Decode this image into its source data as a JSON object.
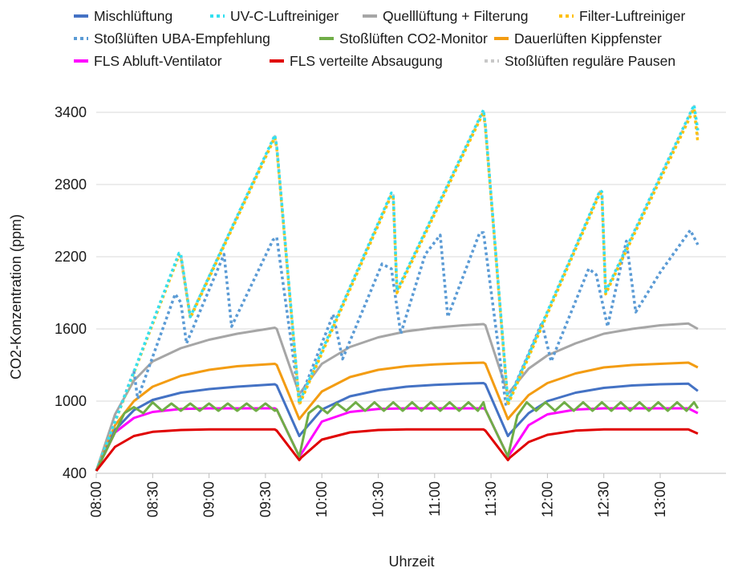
{
  "chart_data": {
    "type": "line",
    "xlabel": "Uhrzeit",
    "ylabel": "CO2-Konzentration (ppm)",
    "ylim": [
      400,
      3400
    ],
    "yticks": [
      400,
      1000,
      1600,
      2200,
      2800,
      3400
    ],
    "xlim_minutes_from_0800": [
      0,
      335
    ],
    "xticks": [
      "08:00",
      "08:30",
      "09:00",
      "09:30",
      "10:00",
      "10:30",
      "11:00",
      "11:30",
      "12:00",
      "12:30",
      "13:00"
    ],
    "grid": "horizontal",
    "legend_position": "top",
    "series": [
      {
        "name": "Mischlüftung",
        "color": "#4472C4",
        "dash": "solid",
        "x": [
          "08:00",
          "08:10",
          "08:20",
          "08:30",
          "08:45",
          "09:00",
          "09:15",
          "09:35",
          "09:36",
          "09:48",
          "09:49",
          "10:00",
          "10:15",
          "10:30",
          "10:45",
          "11:00",
          "11:15",
          "11:26",
          "11:27",
          "11:39",
          "11:40",
          "11:50",
          "12:00",
          "12:15",
          "12:30",
          "12:45",
          "13:00",
          "13:15",
          "13:20"
        ],
        "values": [
          420,
          760,
          925,
          1010,
          1070,
          1100,
          1120,
          1140,
          1130,
          710,
          730,
          930,
          1040,
          1090,
          1120,
          1135,
          1145,
          1150,
          1140,
          710,
          730,
          900,
          1000,
          1070,
          1110,
          1130,
          1140,
          1145,
          1085
        ]
      },
      {
        "name": "UV-C-Luftreiniger",
        "color": "#33E0F0",
        "dash": "dot",
        "x": [
          "08:00",
          "08:44",
          "08:45",
          "08:50",
          "09:35",
          "09:36",
          "09:48",
          "10:37",
          "10:38",
          "10:40",
          "11:26",
          "11:27",
          "11:39",
          "12:28",
          "12:29",
          "12:31",
          "13:18",
          "13:20"
        ],
        "values": [
          420,
          2230,
          2220,
          1700,
          3210,
          3120,
          990,
          2730,
          2720,
          1920,
          3420,
          3290,
          990,
          2750,
          2740,
          1910,
          3460,
          3250
        ]
      },
      {
        "name": "Quelllüftung + Filterung",
        "color": "#A6A6A6",
        "dash": "solid",
        "x": [
          "08:00",
          "08:10",
          "08:20",
          "08:30",
          "08:45",
          "09:00",
          "09:15",
          "09:35",
          "09:36",
          "09:48",
          "09:49",
          "10:00",
          "10:15",
          "10:30",
          "10:45",
          "11:00",
          "11:15",
          "11:26",
          "11:27",
          "11:39",
          "11:40",
          "11:50",
          "12:00",
          "12:15",
          "12:30",
          "12:45",
          "13:00",
          "13:15",
          "13:20"
        ],
        "values": [
          420,
          890,
          1170,
          1330,
          1440,
          1510,
          1560,
          1610,
          1600,
          1060,
          1080,
          1310,
          1450,
          1530,
          1580,
          1610,
          1630,
          1640,
          1630,
          1060,
          1080,
          1270,
          1380,
          1480,
          1560,
          1600,
          1630,
          1645,
          1600
        ]
      },
      {
        "name": "Filter-Luftreiniger",
        "color": "#FFC000",
        "dash": "dot",
        "x": [
          "08:00",
          "08:44",
          "08:45",
          "08:50",
          "09:35",
          "09:36",
          "09:48",
          "10:37",
          "10:38",
          "10:40",
          "11:26",
          "11:27",
          "11:39",
          "12:28",
          "12:29",
          "12:31",
          "13:18",
          "13:20"
        ],
        "values": [
          420,
          2210,
          2200,
          1690,
          3190,
          3100,
          970,
          2710,
          2700,
          1900,
          3400,
          3270,
          970,
          2730,
          2720,
          1890,
          3430,
          3150
        ]
      },
      {
        "name": "Stoßlüften UBA-Empfehlung",
        "color": "#5B9BD5",
        "dash": "dot",
        "x": [
          "08:00",
          "08:20",
          "08:22",
          "08:42",
          "08:45",
          "08:48",
          "09:08",
          "09:12",
          "09:34",
          "09:36",
          "09:48",
          "10:06",
          "10:11",
          "10:32",
          "10:37",
          "10:42",
          "10:55",
          "11:03",
          "11:07",
          "11:24",
          "11:26",
          "11:38",
          "11:57",
          "12:02",
          "12:22",
          "12:26",
          "12:32",
          "12:42",
          "12:47",
          "13:00",
          "13:16",
          "13:20"
        ],
        "values": [
          420,
          1250,
          1020,
          1890,
          1820,
          1480,
          2220,
          1620,
          2340,
          2360,
          1000,
          1720,
          1350,
          2140,
          2100,
          1560,
          2220,
          2380,
          1700,
          2400,
          2400,
          960,
          1650,
          1330,
          2100,
          2050,
          1620,
          2330,
          1740,
          2070,
          2420,
          2300
        ]
      },
      {
        "name": "Stoßlüften CO2-Monitor",
        "color": "#70AD47",
        "dash": "solid",
        "x": [
          "08:00",
          "08:15",
          "08:20",
          "08:25",
          "08:30",
          "08:35",
          "08:40",
          "08:45",
          "08:50",
          "08:55",
          "09:00",
          "09:05",
          "09:10",
          "09:15",
          "09:20",
          "09:25",
          "09:30",
          "09:35",
          "09:36",
          "09:48",
          "09:53",
          "09:58",
          "10:03",
          "10:08",
          "10:13",
          "10:18",
          "10:23",
          "10:28",
          "10:33",
          "10:38",
          "10:43",
          "10:48",
          "10:53",
          "10:58",
          "11:03",
          "11:08",
          "11:13",
          "11:18",
          "11:23",
          "11:26",
          "11:27",
          "11:39",
          "11:44",
          "11:49",
          "11:54",
          "11:59",
          "12:04",
          "12:09",
          "12:14",
          "12:19",
          "12:24",
          "12:29",
          "12:34",
          "12:39",
          "12:44",
          "12:49",
          "12:54",
          "12:59",
          "13:04",
          "13:09",
          "13:14",
          "13:18",
          "13:20"
        ],
        "values": [
          420,
          900,
          950,
          900,
          990,
          920,
          980,
          920,
          980,
          920,
          980,
          920,
          980,
          920,
          980,
          920,
          980,
          920,
          930,
          540,
          900,
          960,
          900,
          980,
          920,
          990,
          920,
          990,
          920,
          990,
          920,
          990,
          920,
          990,
          920,
          990,
          920,
          990,
          920,
          990,
          930,
          540,
          880,
          990,
          920,
          990,
          920,
          990,
          920,
          990,
          920,
          990,
          920,
          990,
          920,
          990,
          920,
          990,
          920,
          990,
          920,
          990,
          940
        ]
      },
      {
        "name": "Dauerlüften Kippfenster",
        "color": "#F39C12",
        "dash": "solid",
        "x": [
          "08:00",
          "08:10",
          "08:20",
          "08:30",
          "08:45",
          "09:00",
          "09:15",
          "09:35",
          "09:36",
          "09:48",
          "09:49",
          "10:00",
          "10:15",
          "10:30",
          "10:45",
          "11:00",
          "11:15",
          "11:26",
          "11:27",
          "11:39",
          "11:40",
          "11:50",
          "12:00",
          "12:15",
          "12:30",
          "12:45",
          "13:00",
          "13:15",
          "13:20"
        ],
        "values": [
          420,
          800,
          1000,
          1120,
          1210,
          1260,
          1290,
          1310,
          1300,
          850,
          870,
          1080,
          1200,
          1260,
          1290,
          1305,
          1315,
          1320,
          1310,
          850,
          870,
          1050,
          1150,
          1230,
          1280,
          1300,
          1310,
          1320,
          1280
        ]
      },
      {
        "name": "FLS Abluft-Ventilator",
        "color": "#FF00FF",
        "dash": "solid",
        "x": [
          "08:00",
          "08:10",
          "08:20",
          "08:30",
          "08:45",
          "09:00",
          "09:15",
          "09:35",
          "09:36",
          "09:48",
          "09:49",
          "10:00",
          "10:15",
          "10:30",
          "10:45",
          "11:00",
          "11:15",
          "11:26",
          "11:27",
          "11:39",
          "11:40",
          "11:50",
          "12:00",
          "12:15",
          "12:30",
          "12:45",
          "13:00",
          "13:15",
          "13:20"
        ],
        "values": [
          420,
          740,
          860,
          910,
          935,
          940,
          940,
          940,
          930,
          540,
          560,
          830,
          910,
          935,
          940,
          940,
          940,
          940,
          930,
          540,
          560,
          800,
          890,
          930,
          940,
          940,
          940,
          940,
          900
        ]
      },
      {
        "name": "FLS verteilte Absaugung",
        "color": "#E00000",
        "dash": "solid",
        "x": [
          "08:00",
          "08:10",
          "08:20",
          "08:30",
          "08:45",
          "09:00",
          "09:15",
          "09:35",
          "09:36",
          "09:48",
          "09:49",
          "10:00",
          "10:15",
          "10:30",
          "10:45",
          "11:00",
          "11:15",
          "11:26",
          "11:27",
          "11:39",
          "11:40",
          "11:50",
          "12:00",
          "12:15",
          "12:30",
          "12:45",
          "13:00",
          "13:15",
          "13:20"
        ],
        "values": [
          420,
          620,
          710,
          745,
          760,
          765,
          765,
          765,
          755,
          510,
          530,
          680,
          740,
          760,
          765,
          765,
          765,
          765,
          755,
          510,
          530,
          660,
          720,
          755,
          765,
          765,
          765,
          765,
          730
        ]
      },
      {
        "name": "Stoßlüften reguläre Pausen",
        "color": "#C8C8C8",
        "dash": "dot",
        "x": [
          "08:00",
          "08:44",
          "08:45",
          "08:50",
          "09:35",
          "09:36",
          "09:48",
          "10:37",
          "10:38",
          "10:40",
          "11:26",
          "11:27",
          "11:39",
          "12:28",
          "12:29",
          "12:31",
          "13:18",
          "13:20"
        ],
        "values": [
          420,
          2220,
          2210,
          1700,
          3200,
          3110,
          980,
          2720,
          2710,
          1910,
          3410,
          3280,
          980,
          2740,
          2730,
          1900,
          3450,
          3200
        ]
      }
    ]
  }
}
